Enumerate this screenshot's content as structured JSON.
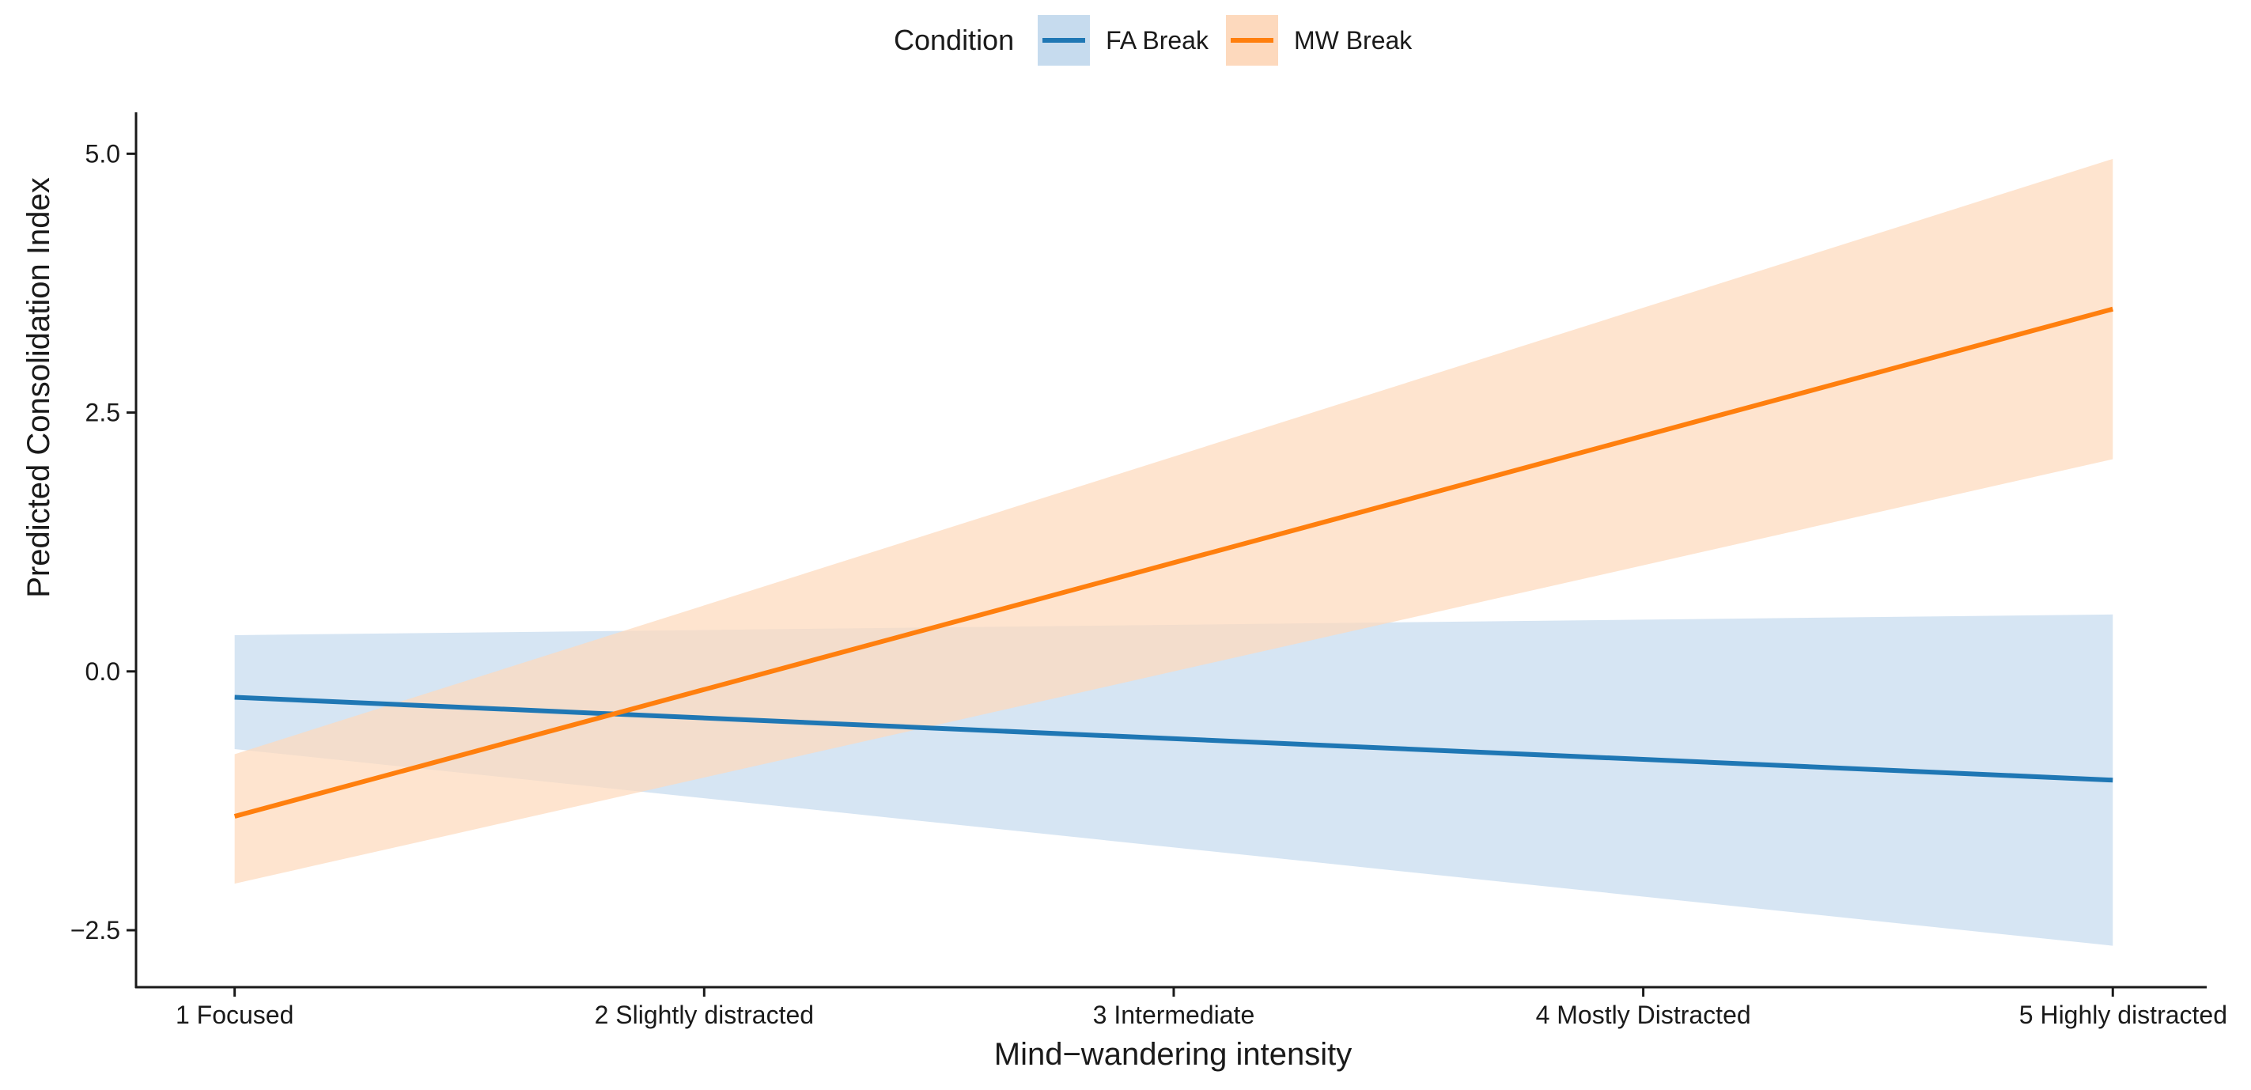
{
  "chart_data": {
    "type": "line",
    "title": "",
    "xlabel": "Mind−wandering intensity",
    "ylabel": "Predicted Consolidation Index",
    "categories": [
      "1 Focused",
      "2 Slightly distracted",
      "3 Intermediate",
      "4 Mostly Distracted",
      "5 Highly distracted"
    ],
    "x": [
      1,
      5
    ],
    "xlim": [
      0.79,
      5.2
    ],
    "ylim": [
      -3.05,
      5.4
    ],
    "y_ticks": [
      -2.5,
      0.0,
      2.5,
      5.0
    ],
    "y_tick_labels": [
      "−2.5",
      "0.0",
      "2.5",
      "5.0"
    ],
    "grid": false,
    "legend": {
      "title": "Condition",
      "position": "top"
    },
    "series": [
      {
        "name": "FA Break",
        "color": "#1f77b4",
        "band_color": "#c6dbee",
        "values": [
          -0.25,
          -1.05
        ],
        "lower": [
          -0.75,
          -2.65
        ],
        "upper": [
          0.35,
          0.55
        ]
      },
      {
        "name": "MW Break",
        "color": "#ff7f0e",
        "band_color": "#fdd9bd",
        "values": [
          -1.4,
          3.5
        ],
        "lower": [
          -2.05,
          2.05
        ],
        "upper": [
          -0.8,
          4.95
        ]
      }
    ]
  }
}
